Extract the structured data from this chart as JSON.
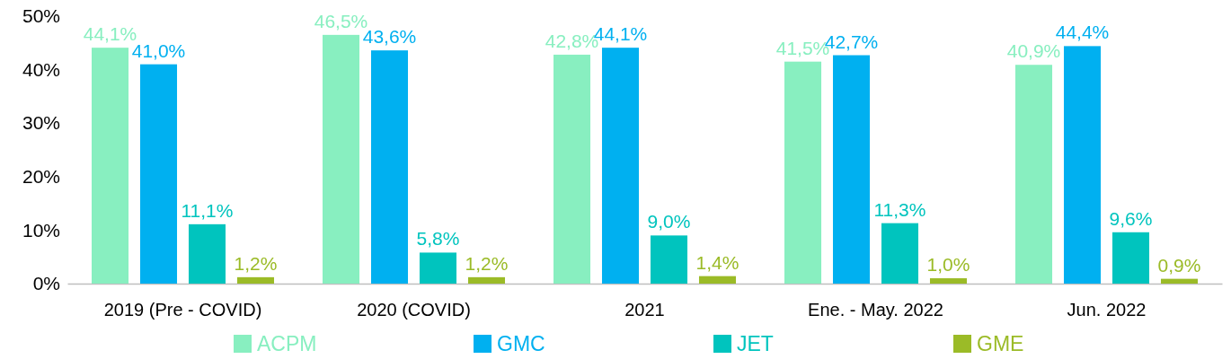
{
  "chart_data": {
    "type": "bar",
    "categories": [
      "2019 (Pre - COVID)",
      "2020 (COVID)",
      "2021",
      "Ene. - May. 2022",
      "Jun. 2022"
    ],
    "series": [
      {
        "name": "ACPM",
        "color": "#88efc0",
        "values": [
          44.1,
          46.5,
          42.8,
          41.5,
          40.9
        ],
        "value_labels": [
          "44,1%",
          "46,5%",
          "42,8%",
          "41,5%",
          "40,9%"
        ]
      },
      {
        "name": "GMC",
        "color": "#00b0f0",
        "values": [
          41.0,
          43.6,
          44.1,
          42.7,
          44.4
        ],
        "value_labels": [
          "41,0%",
          "43,6%",
          "44,1%",
          "42,7%",
          "44,4%"
        ]
      },
      {
        "name": "JET",
        "color": "#00c4be",
        "values": [
          11.1,
          5.8,
          9.0,
          11.3,
          9.6
        ],
        "value_labels": [
          "11,1%",
          "5,8%",
          "9,0%",
          "11,3%",
          "9,6%"
        ]
      },
      {
        "name": "GME",
        "color": "#9bbb27",
        "values": [
          1.2,
          1.2,
          1.4,
          1.0,
          0.9
        ],
        "value_labels": [
          "1,2%",
          "1,2%",
          "1,4%",
          "1,0%",
          "0,9%"
        ]
      }
    ],
    "ylim": [
      0,
      50
    ],
    "yticks": [
      {
        "value": 0,
        "label": "0%"
      },
      {
        "value": 10,
        "label": "10%"
      },
      {
        "value": 20,
        "label": "20%"
      },
      {
        "value": 30,
        "label": "30%"
      },
      {
        "value": 40,
        "label": "40%"
      },
      {
        "value": 50,
        "label": "50%"
      }
    ],
    "legend": "bottom",
    "grid": false
  }
}
